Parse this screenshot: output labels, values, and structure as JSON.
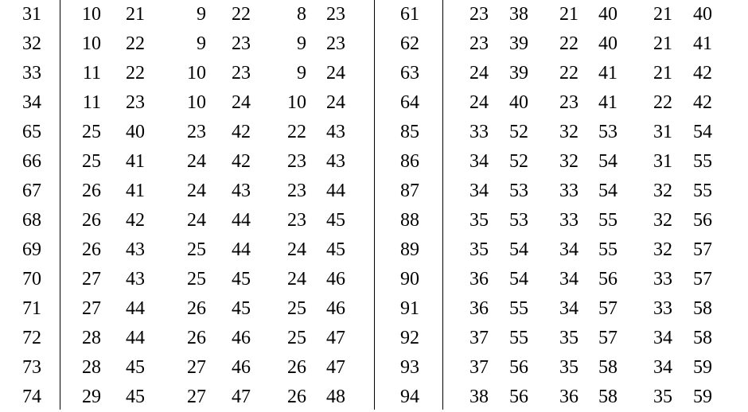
{
  "table": {
    "rows": [
      [
        "31",
        "10",
        "21",
        "9",
        "22",
        "8",
        "23",
        "61",
        "23",
        "38",
        "21",
        "40",
        "21",
        "40"
      ],
      [
        "32",
        "10",
        "22",
        "9",
        "23",
        "9",
        "23",
        "62",
        "23",
        "39",
        "22",
        "40",
        "21",
        "41"
      ],
      [
        "33",
        "11",
        "22",
        "10",
        "23",
        "9",
        "24",
        "63",
        "24",
        "39",
        "22",
        "41",
        "21",
        "42"
      ],
      [
        "34",
        "11",
        "23",
        "10",
        "24",
        "10",
        "24",
        "64",
        "24",
        "40",
        "23",
        "41",
        "22",
        "42"
      ],
      [
        "65",
        "25",
        "40",
        "23",
        "42",
        "22",
        "43",
        "85",
        "33",
        "52",
        "32",
        "53",
        "31",
        "54"
      ],
      [
        "66",
        "25",
        "41",
        "24",
        "42",
        "23",
        "43",
        "86",
        "34",
        "52",
        "32",
        "54",
        "31",
        "55"
      ],
      [
        "67",
        "26",
        "41",
        "24",
        "43",
        "23",
        "44",
        "87",
        "34",
        "53",
        "33",
        "54",
        "32",
        "55"
      ],
      [
        "68",
        "26",
        "42",
        "24",
        "44",
        "23",
        "45",
        "88",
        "35",
        "53",
        "33",
        "55",
        "32",
        "56"
      ],
      [
        "69",
        "26",
        "43",
        "25",
        "44",
        "24",
        "45",
        "89",
        "35",
        "54",
        "34",
        "55",
        "32",
        "57"
      ],
      [
        "70",
        "27",
        "43",
        "25",
        "45",
        "24",
        "46",
        "90",
        "36",
        "54",
        "34",
        "56",
        "33",
        "57"
      ],
      [
        "71",
        "27",
        "44",
        "26",
        "45",
        "25",
        "46",
        "91",
        "36",
        "55",
        "34",
        "57",
        "33",
        "58"
      ],
      [
        "72",
        "28",
        "44",
        "26",
        "46",
        "25",
        "47",
        "92",
        "37",
        "55",
        "35",
        "57",
        "34",
        "58"
      ],
      [
        "73",
        "28",
        "45",
        "27",
        "46",
        "26",
        "47",
        "93",
        "37",
        "56",
        "35",
        "58",
        "34",
        "59"
      ],
      [
        "74",
        "29",
        "45",
        "27",
        "47",
        "26",
        "48",
        "94",
        "38",
        "56",
        "36",
        "58",
        "35",
        "59"
      ]
    ]
  }
}
